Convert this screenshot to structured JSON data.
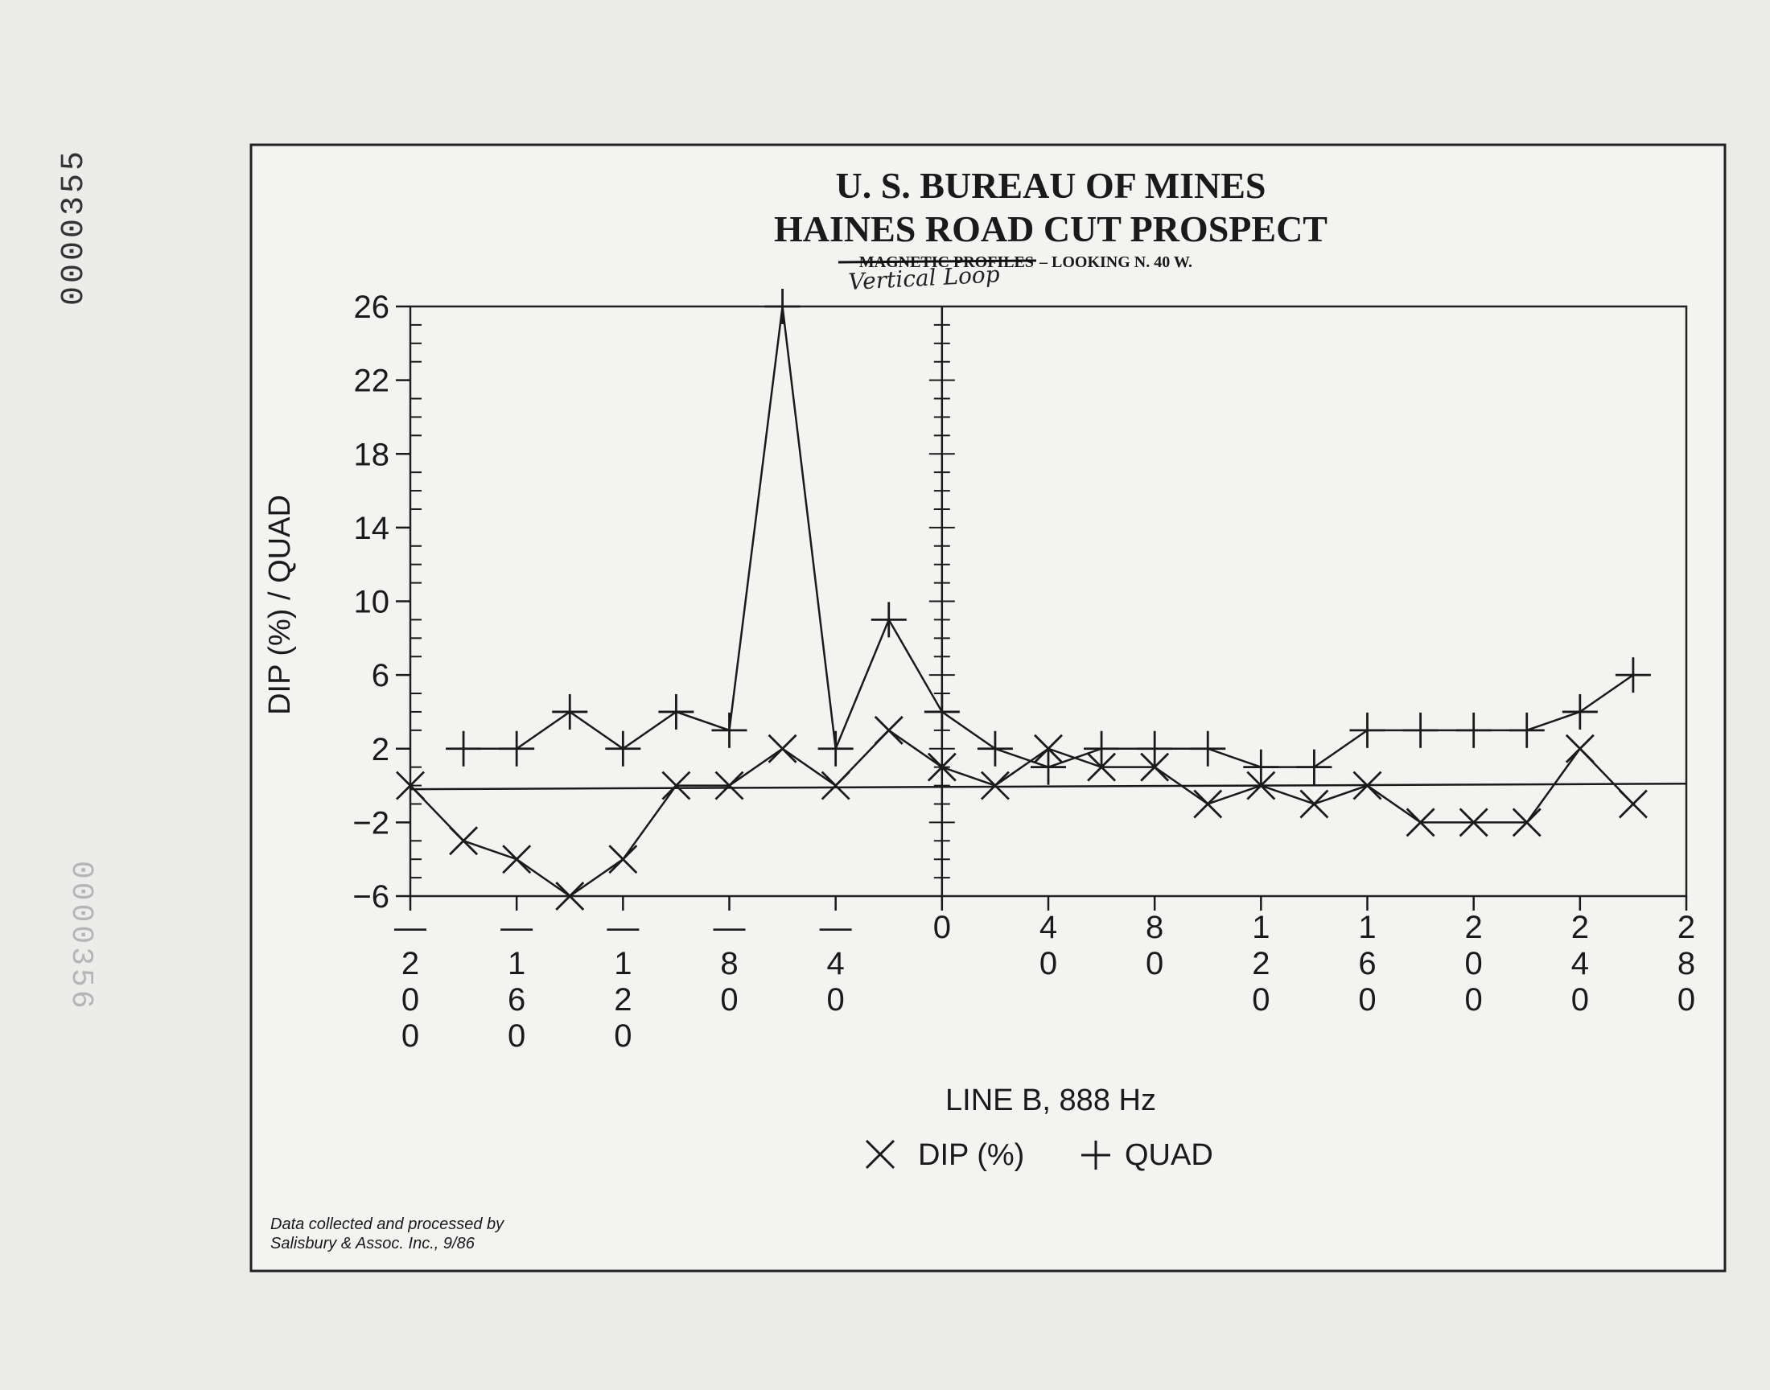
{
  "document": {
    "scan_number": "0000355",
    "scan_number_ghost": "0000356",
    "title_line1": "U. S. BUREAU OF MINES",
    "title_line2": "HAINES ROAD CUT PROSPECT",
    "subtitle_struck": "MAGNETIC PROFILES",
    "subtitle_rest": "– LOOKING N. 40 W.",
    "subtitle_handwritten": "Vertical Loop",
    "credit_line1": "Data collected and processed by",
    "credit_line2": "Salisbury & Assoc. Inc., 9/86"
  },
  "chart_data": {
    "type": "line",
    "title": "U. S. BUREAU OF MINES",
    "xlabel": "LINE B, 888 Hz",
    "ylabel": "DIP (%) / QUAD",
    "xlim": [
      -200,
      280
    ],
    "ylim": [
      -6,
      26
    ],
    "yticks": [
      26,
      22,
      18,
      14,
      10,
      6,
      2,
      -2,
      -6
    ],
    "xticks": [
      {
        "value": -200,
        "label": "-200"
      },
      {
        "value": -160,
        "label": "-160"
      },
      {
        "value": -120,
        "label": "-120"
      },
      {
        "value": -80,
        "label": "-80"
      },
      {
        "value": -40,
        "label": "-40"
      },
      {
        "value": 0,
        "label": "0"
      },
      {
        "value": 40,
        "label": "40"
      },
      {
        "value": 80,
        "label": "80"
      },
      {
        "value": 120,
        "label": "120"
      },
      {
        "value": 160,
        "label": "160"
      },
      {
        "value": 200,
        "label": "200"
      },
      {
        "value": 240,
        "label": "240"
      },
      {
        "value": 280,
        "label": "280"
      }
    ],
    "legend": [
      {
        "marker": "×",
        "label": "DIP (%)"
      },
      {
        "marker": "+",
        "label": "QUAD"
      }
    ],
    "legend_placement": "bottom-center",
    "series": [
      {
        "name": "DIP (%)",
        "marker": "x",
        "x": [
          -200,
          -180,
          -160,
          -140,
          -120,
          -100,
          -80,
          -60,
          -40,
          -20,
          0,
          20,
          40,
          60,
          80,
          100,
          120,
          140,
          160,
          180,
          200,
          220,
          240,
          260
        ],
        "values": [
          0,
          -3,
          -4,
          -6,
          -4,
          0,
          0,
          2,
          0,
          3,
          1,
          0,
          2,
          1,
          1,
          -1,
          0,
          -1,
          0,
          -2,
          -2,
          -2,
          2,
          -1
        ]
      },
      {
        "name": "QUAD",
        "marker": "+",
        "x": [
          -180,
          -160,
          -140,
          -120,
          -100,
          -80,
          -60,
          -40,
          -20,
          0,
          20,
          40,
          60,
          80,
          100,
          120,
          140,
          160,
          180,
          200,
          220,
          240,
          260
        ],
        "values": [
          2,
          2,
          4,
          2,
          4,
          3,
          26,
          2,
          9,
          4,
          2,
          1,
          2,
          2,
          2,
          1,
          1,
          3,
          3,
          3,
          3,
          4,
          6
        ]
      }
    ]
  }
}
